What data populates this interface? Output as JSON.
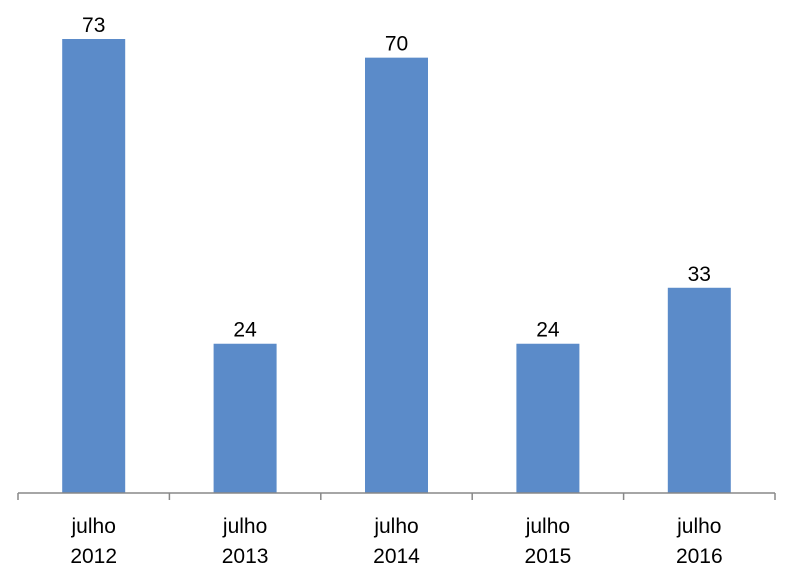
{
  "chart_data": {
    "type": "bar",
    "categories": [
      [
        "julho",
        "2012"
      ],
      [
        "julho",
        "2013"
      ],
      [
        "julho",
        "2014"
      ],
      [
        "julho",
        "2015"
      ],
      [
        "julho",
        "2016"
      ]
    ],
    "values": [
      73,
      24,
      70,
      24,
      33
    ],
    "value_labels": [
      "73",
      "24",
      "70",
      "24",
      "33"
    ],
    "title": "",
    "xlabel": "",
    "ylabel": "",
    "ylim": [
      0,
      73
    ],
    "grid": false,
    "legend": "none",
    "bar_color": "#5B8BC9"
  }
}
